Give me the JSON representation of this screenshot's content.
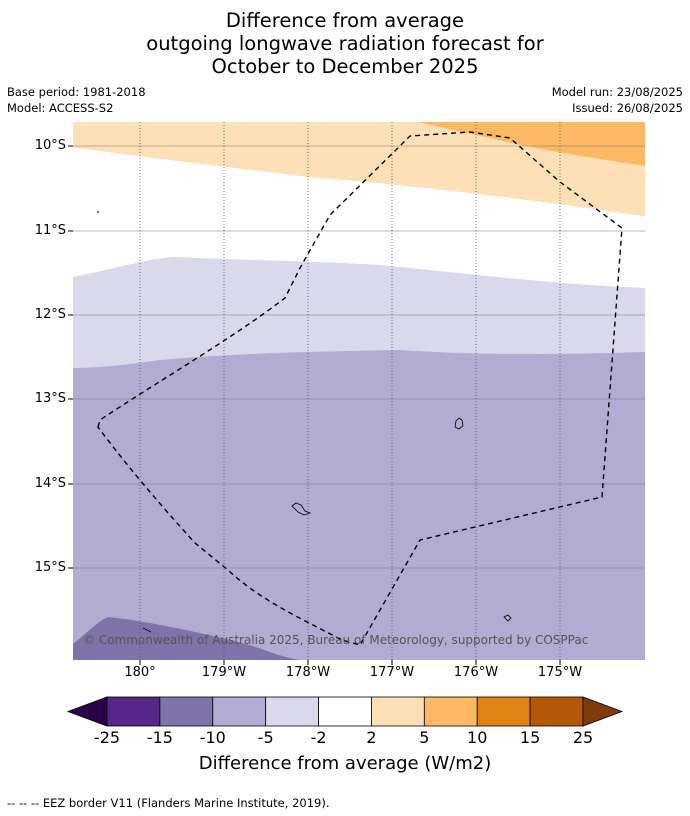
{
  "title": {
    "line1": "Difference from average",
    "line2": "outgoing longwave radiation forecast for",
    "line3": "October to December 2025"
  },
  "meta": {
    "base_period": "Base period: 1981-2018",
    "model": "Model: ACCESS-S2",
    "model_run": "Model run: 23/08/2025",
    "issued": "Issued: 26/08/2025"
  },
  "map": {
    "lat_labels": [
      "10°S",
      "11°S",
      "12°S",
      "13°S",
      "14°S",
      "15°S"
    ],
    "lon_labels": [
      "180°",
      "179°W",
      "178°W",
      "177°W",
      "176°W",
      "175°W"
    ],
    "copyright": "© Commonwealth of Australia 2025, Bureau of Meteorology, supported by COSPPac",
    "region_colors": {
      "plus_5_to_10": "#fdb863",
      "plus_2_to_5": "#fee0b6",
      "minus_5_to_2": "#d8daeb",
      "minus_10_to_5": "#b2abd2",
      "minus_15_to_10": "#8073ac"
    }
  },
  "colorbar": {
    "title": "Difference from average (W/m2)",
    "labels": [
      "-25",
      "-15",
      "-10",
      "-5",
      "-2",
      "2",
      "5",
      "10",
      "15",
      "25"
    ],
    "colors": [
      "#2d004b",
      "#542788",
      "#8073ac",
      "#b2abd2",
      "#d8daeb",
      "#ffffff",
      "#fee0b6",
      "#fdb863",
      "#e08214",
      "#b35806",
      "#7f3b08"
    ]
  },
  "footnote": "--  --  -- EEZ border V11 (Flanders Marine Institute, 2019)."
}
